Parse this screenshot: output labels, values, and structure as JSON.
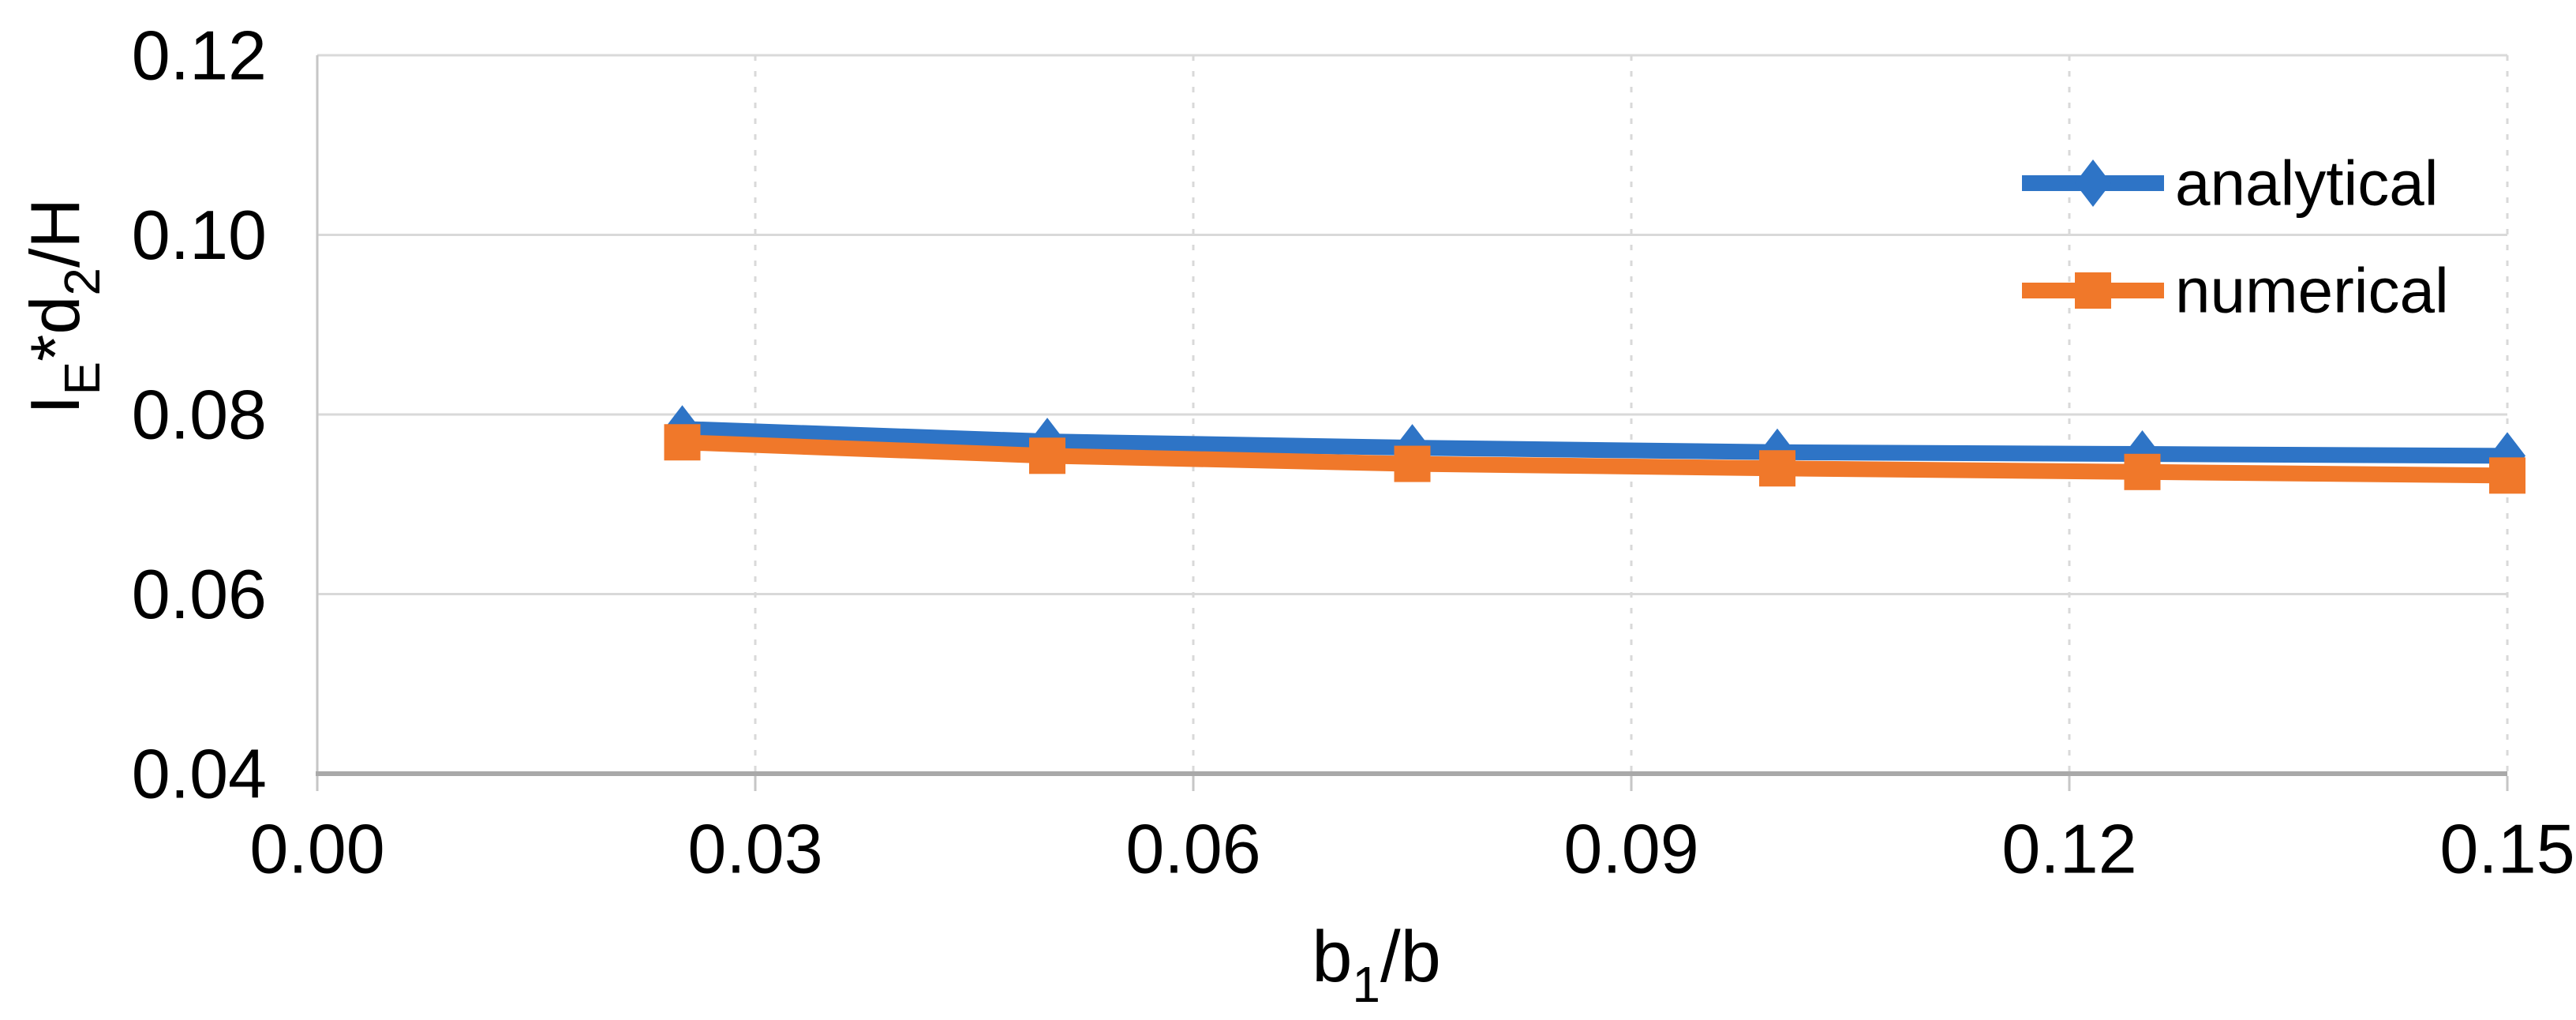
{
  "chart_data": {
    "type": "line",
    "title": "",
    "x": [
      0.025,
      0.05,
      0.075,
      0.1,
      0.125,
      0.15
    ],
    "series": [
      {
        "name": "analytical",
        "marker": "diamond",
        "color": "#2E74C6",
        "values": [
          0.0784,
          0.077,
          0.0763,
          0.0758,
          0.0756,
          0.0754
        ]
      },
      {
        "name": "numerical",
        "marker": "square",
        "color": "#F0782A",
        "values": [
          0.0769,
          0.0754,
          0.0745,
          0.074,
          0.0736,
          0.0732
        ]
      }
    ],
    "x_axis": {
      "range": [
        0,
        0.15
      ],
      "ticks": [
        0,
        0.03,
        0.06,
        0.09,
        0.12,
        0.15
      ],
      "tick_labels": [
        "0.00",
        "0.03",
        "0.06",
        "0.09",
        "0.12",
        "0.15"
      ],
      "label_runs": [
        {
          "text": "b"
        },
        {
          "text": "1",
          "sub": true
        },
        {
          "text": "/b"
        }
      ]
    },
    "y_axis": {
      "range": [
        0.04,
        0.12
      ],
      "ticks": [
        0.04,
        0.06,
        0.08,
        0.1,
        0.12
      ],
      "tick_labels": [
        "0.04",
        "0.06",
        "0.08",
        "0.10",
        "0.12"
      ],
      "label_runs": [
        {
          "text": "I"
        },
        {
          "text": "E",
          "sub": true
        },
        {
          "text": "*d"
        },
        {
          "text": "2",
          "sub": true
        },
        {
          "text": "/H"
        }
      ]
    },
    "legend": {
      "position": "top-right-inside",
      "entries": [
        "analytical",
        "numerical"
      ]
    },
    "grid": {
      "horizontal": "solid",
      "vertical": "dashed"
    }
  },
  "styles": {
    "background": "#FFFFFF",
    "text_color": "#000000",
    "gridline_color": "#D9D9D9",
    "axis_color": "#A9A9A9",
    "axis_minor_color": "#C6C6C6"
  }
}
